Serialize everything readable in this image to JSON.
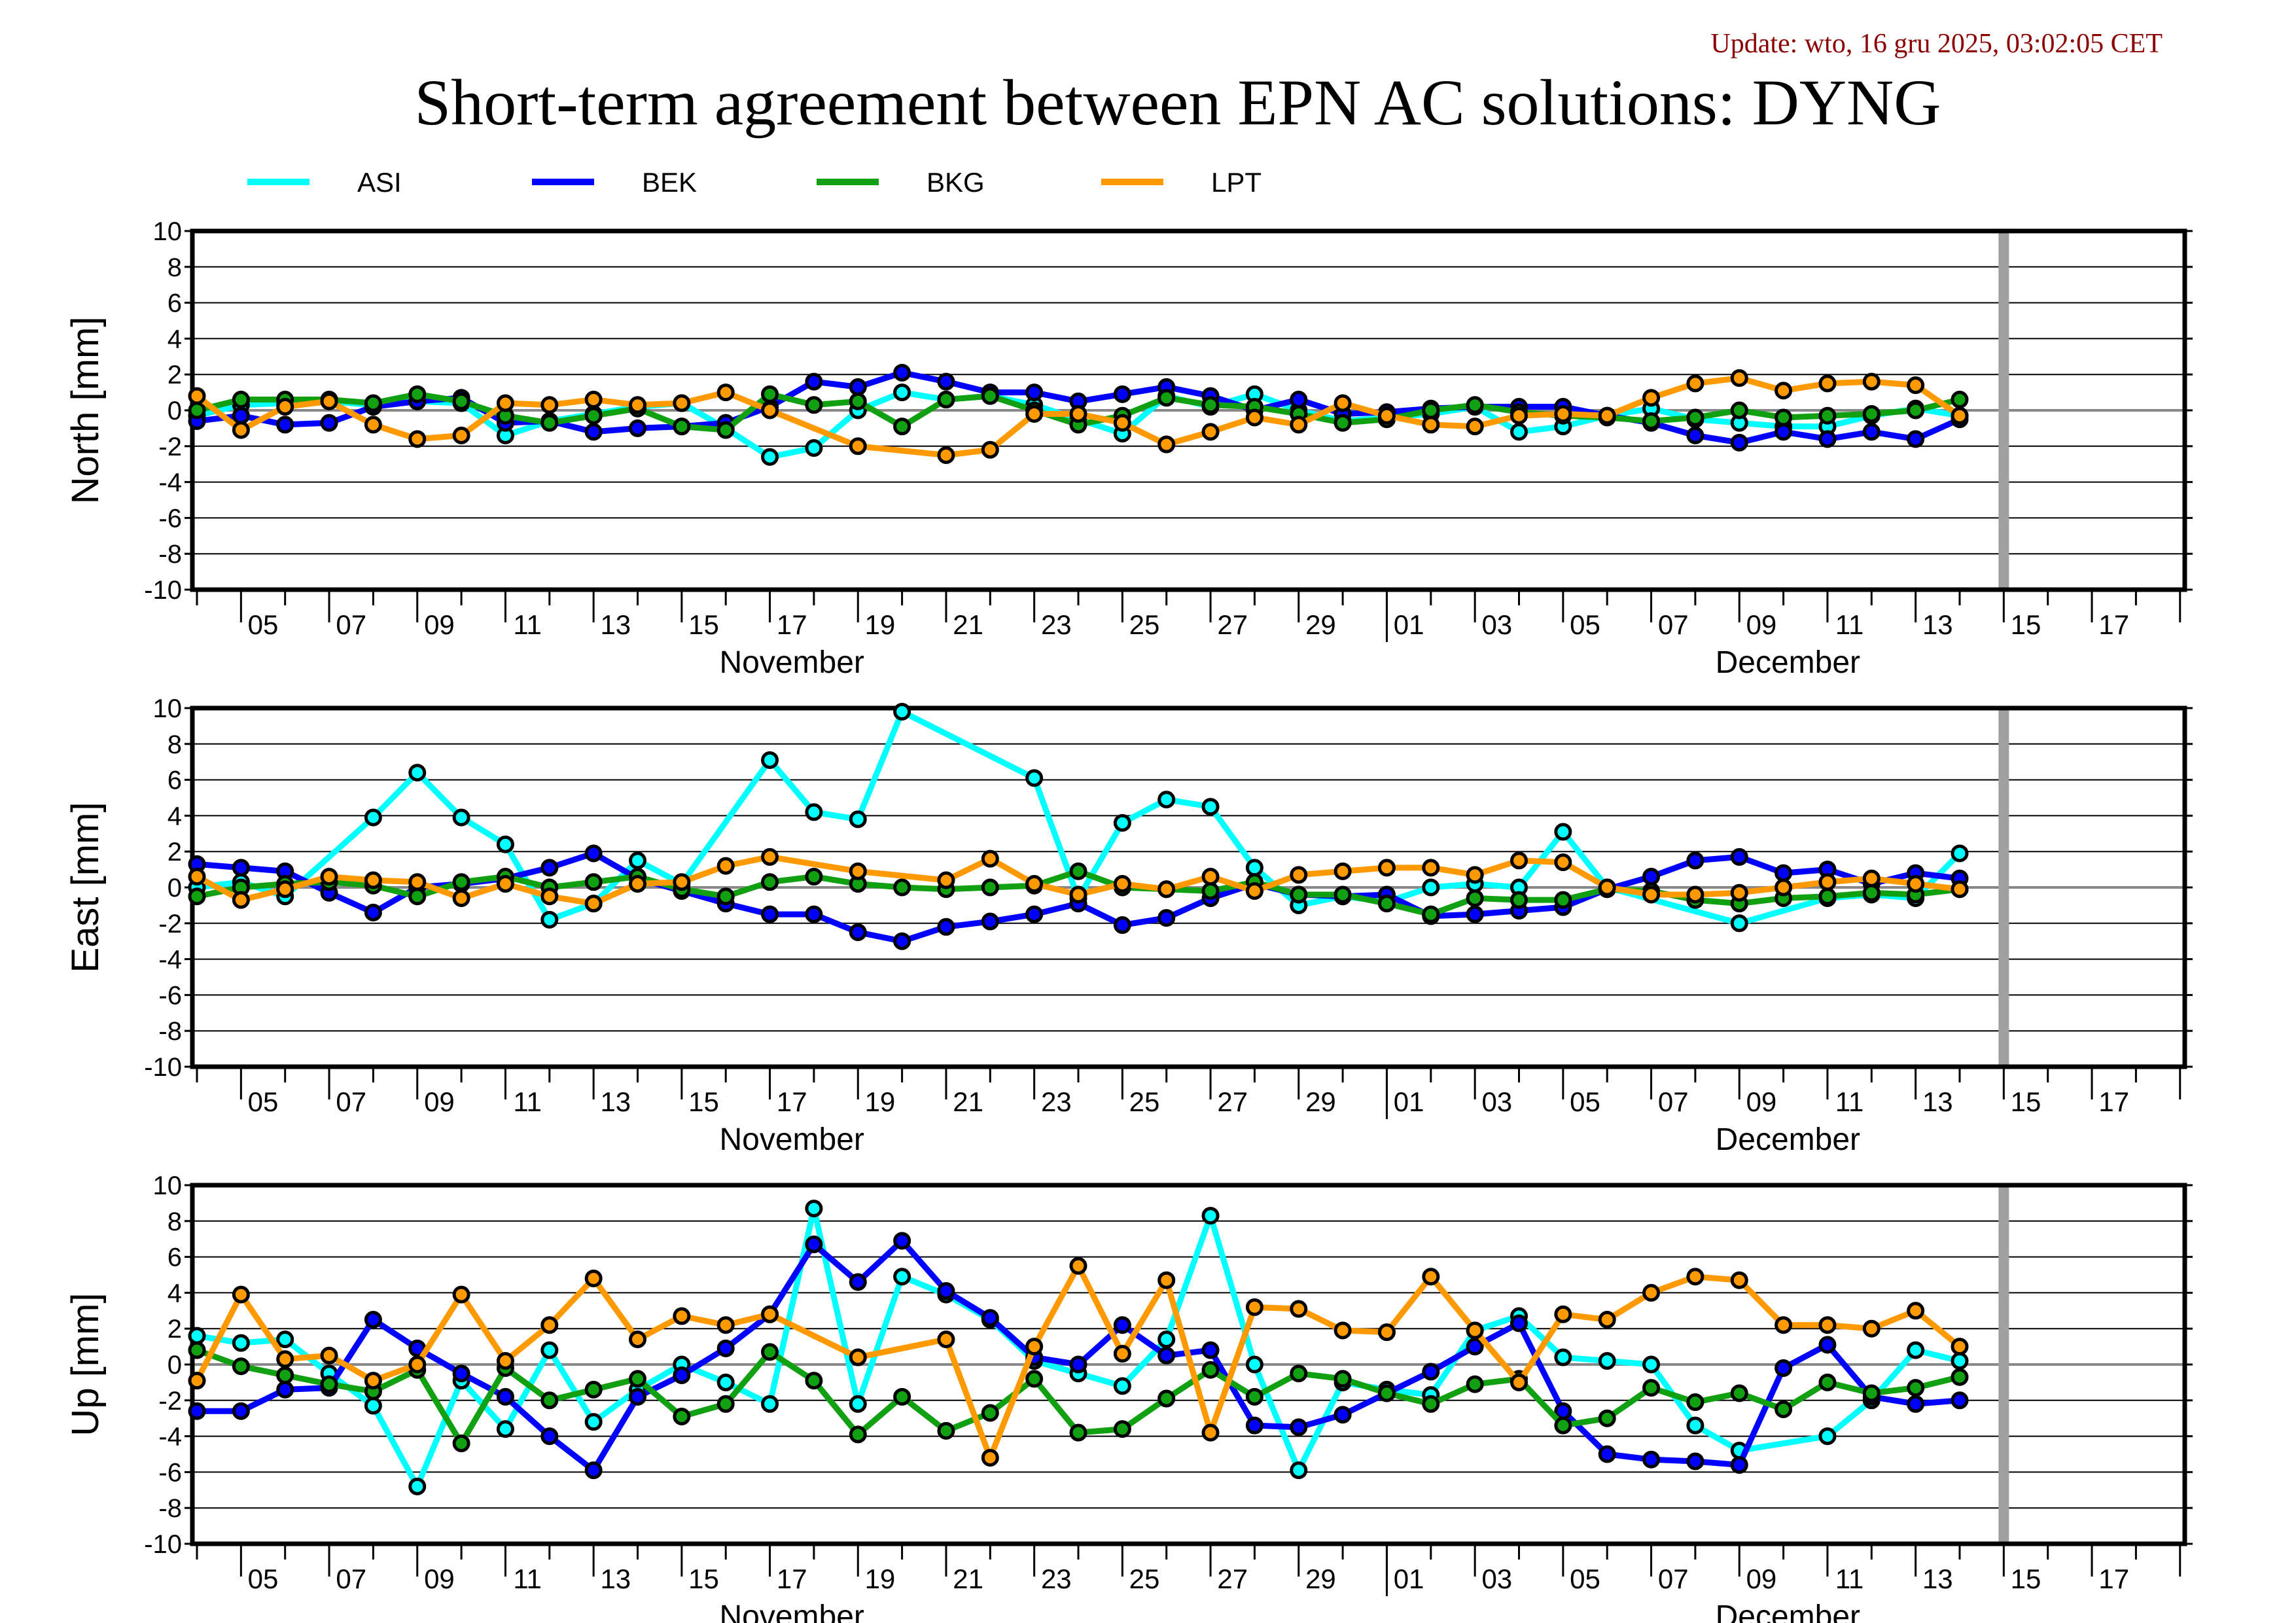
{
  "update_text": "Update: wto, 16 gru 2025, 03:02:05 CET",
  "title": "Short-term agreement between EPN AC solutions: DYNG",
  "colors": {
    "ASI": "#00ffff",
    "BEK": "#0000ff",
    "BKG": "#11a011",
    "LPT": "#ff9900",
    "update": "#8b0000",
    "current_day_bar": "#a0a0a0"
  },
  "chart_data": {
    "type": "line",
    "x_start_date": "2025-11-04",
    "x_range": [
      "2025-11-04",
      "2025-12-19"
    ],
    "current_day_marker": "2025-12-15",
    "x_tick_labels": [
      "05",
      "07",
      "09",
      "11",
      "13",
      "15",
      "17",
      "19",
      "21",
      "23",
      "25",
      "27",
      "29",
      "01",
      "03",
      "05",
      "07",
      "09",
      "11",
      "13",
      "15",
      "17"
    ],
    "month_labels": [
      "November",
      "December"
    ],
    "legend": [
      "ASI",
      "BEK",
      "BKG",
      "LPT"
    ],
    "legend_placement": "top",
    "grid": true,
    "yticks": [
      -10,
      -8,
      -6,
      -4,
      -2,
      0,
      2,
      4,
      6,
      8,
      10
    ],
    "panels": [
      {
        "ylabel": "North [mm]",
        "ylim": [
          -10,
          10
        ],
        "series": [
          {
            "name": "ASI",
            "values": [
              -0.3,
              0.3,
              0.4,
              0.5,
              0.3,
              0.5,
              0.4,
              -1.4,
              -0.6,
              -0.2,
              0.2,
              0.4,
              -1.0,
              -2.6,
              -2.1,
              0.0,
              1.0,
              0.6,
              0.8,
              0.3,
              -0.5,
              -1.3,
              0.8,
              0.2,
              0.9,
              0.0,
              -0.6,
              -0.4,
              -0.2,
              0.2,
              -1.2,
              -0.9,
              -0.3,
              0.1,
              -0.5,
              -0.7,
              -0.9,
              -0.9,
              -0.3,
              0.1,
              -0.3
            ]
          },
          {
            "name": "BEK",
            "values": [
              -0.6,
              -0.3,
              -0.8,
              -0.7,
              0.2,
              0.5,
              0.7,
              -0.7,
              -0.6,
              -1.2,
              -1.0,
              -0.9,
              -0.7,
              0.2,
              1.6,
              1.3,
              2.1,
              1.6,
              1.0,
              1.0,
              0.5,
              0.9,
              1.3,
              0.8,
              0.0,
              0.6,
              -0.2,
              -0.1,
              0.1,
              0.2,
              0.2,
              0.2,
              -0.3,
              -0.7,
              -1.4,
              -1.8,
              -1.2,
              -1.6,
              -1.2,
              -1.6,
              -0.5
            ]
          },
          {
            "name": "BKG",
            "values": [
              0.0,
              0.6,
              0.6,
              0.6,
              0.4,
              0.9,
              0.5,
              -0.3,
              -0.7,
              -0.3,
              0.1,
              -0.9,
              -1.1,
              0.9,
              0.3,
              0.5,
              -0.9,
              0.6,
              0.8,
              0.0,
              -0.8,
              -0.3,
              0.7,
              0.3,
              0.2,
              -0.2,
              -0.7,
              -0.5,
              0.0,
              0.3,
              -0.1,
              -0.3,
              -0.4,
              -0.6,
              -0.4,
              0.0,
              -0.4,
              -0.3,
              -0.2,
              0.0,
              0.6
            ]
          },
          {
            "name": "LPT",
            "values": [
              0.8,
              -1.1,
              0.2,
              0.5,
              -0.8,
              -1.6,
              -1.4,
              0.4,
              0.3,
              0.6,
              0.3,
              0.4,
              1.0,
              0.0,
              null,
              -2.0,
              null,
              -2.5,
              -2.2,
              -0.2,
              -0.2,
              -0.7,
              -1.9,
              -1.2,
              -0.4,
              -0.8,
              0.4,
              -0.3,
              -0.8,
              -0.9,
              -0.3,
              -0.2,
              -0.3,
              0.7,
              1.5,
              1.8,
              1.1,
              1.5,
              1.6,
              1.4,
              -0.3
            ]
          }
        ]
      },
      {
        "ylabel": "East [mm]",
        "ylim": [
          -10,
          10
        ],
        "series": [
          {
            "name": "ASI",
            "values": [
              0.0,
              0.3,
              -0.5,
              null,
              3.9,
              6.4,
              3.9,
              2.4,
              -1.8,
              -0.9,
              1.5,
              0.2,
              null,
              7.1,
              4.2,
              3.8,
              9.8,
              null,
              null,
              6.1,
              -0.6,
              3.6,
              4.9,
              4.5,
              1.1,
              -1.0,
              -0.5,
              -0.8,
              0.0,
              0.2,
              0.0,
              3.1,
              0.0,
              null,
              null,
              -2.0,
              null,
              -0.6,
              -0.4,
              -0.6,
              1.9
            ]
          },
          {
            "name": "BEK",
            "values": [
              1.3,
              1.1,
              0.9,
              -0.3,
              -1.4,
              0.0,
              0.2,
              0.5,
              1.1,
              1.9,
              0.5,
              -0.2,
              -0.9,
              -1.5,
              -1.5,
              -2.5,
              -3.0,
              -2.2,
              -1.9,
              -1.5,
              -0.9,
              -2.1,
              -1.7,
              -0.6,
              0.2,
              -0.4,
              -0.5,
              -0.4,
              -1.6,
              -1.5,
              -1.3,
              -1.1,
              -0.1,
              0.6,
              1.5,
              1.7,
              0.8,
              1.0,
              0.2,
              0.8,
              0.5
            ]
          },
          {
            "name": "BKG",
            "values": [
              -0.5,
              0.0,
              0.2,
              0.3,
              0.1,
              -0.5,
              0.3,
              0.6,
              0.0,
              0.3,
              0.6,
              -0.1,
              -0.5,
              0.3,
              0.6,
              0.2,
              0.0,
              -0.1,
              0.0,
              0.1,
              0.9,
              0.0,
              -0.1,
              -0.2,
              0.3,
              -0.4,
              -0.4,
              -0.9,
              -1.5,
              -0.6,
              -0.7,
              -0.7,
              -0.1,
              -0.2,
              -0.7,
              -0.9,
              -0.6,
              -0.5,
              -0.3,
              -0.4,
              -0.1
            ]
          },
          {
            "name": "LPT",
            "values": [
              0.6,
              -0.7,
              -0.1,
              0.6,
              0.4,
              0.3,
              -0.6,
              0.2,
              -0.5,
              -0.9,
              0.2,
              0.3,
              1.2,
              1.7,
              null,
              0.9,
              null,
              0.4,
              1.6,
              0.2,
              -0.4,
              0.2,
              -0.1,
              0.6,
              -0.2,
              0.7,
              0.9,
              1.1,
              1.1,
              0.7,
              1.5,
              1.4,
              0.0,
              -0.4,
              -0.4,
              -0.3,
              0.0,
              0.3,
              0.5,
              0.2,
              -0.1
            ]
          }
        ]
      },
      {
        "ylabel": "Up [mm]",
        "ylim": [
          -10,
          10
        ],
        "series": [
          {
            "name": "ASI",
            "values": [
              1.6,
              1.2,
              1.4,
              -0.5,
              -2.3,
              -6.8,
              -0.9,
              -3.6,
              0.8,
              -3.2,
              -1.4,
              0.0,
              -1.0,
              -2.2,
              8.7,
              -2.2,
              4.9,
              3.9,
              2.5,
              0.2,
              -0.5,
              -1.2,
              1.4,
              8.3,
              0.0,
              -5.9,
              -1.0,
              -1.4,
              -1.7,
              1.9,
              2.7,
              0.4,
              0.2,
              0.0,
              -3.4,
              -4.8,
              null,
              -4.0,
              -2.0,
              0.8,
              0.2
            ]
          },
          {
            "name": "BEK",
            "values": [
              -2.6,
              -2.6,
              -1.4,
              -1.3,
              2.5,
              0.9,
              -0.5,
              -1.8,
              -4.0,
              -5.9,
              -1.8,
              -0.6,
              0.9,
              2.8,
              6.7,
              4.6,
              6.9,
              4.1,
              2.6,
              0.4,
              0.0,
              2.2,
              0.5,
              0.8,
              -3.4,
              -3.5,
              -2.8,
              -1.6,
              -0.4,
              1.0,
              2.3,
              -2.6,
              -5.0,
              -5.3,
              -5.4,
              -5.6,
              -0.2,
              1.1,
              -1.8,
              -2.2,
              -2.0
            ]
          },
          {
            "name": "BKG",
            "values": [
              0.8,
              -0.1,
              -0.6,
              -1.1,
              -1.5,
              -0.3,
              -4.4,
              -0.2,
              -2.0,
              -1.4,
              -0.8,
              -2.9,
              -2.2,
              0.7,
              -0.9,
              -3.9,
              -1.8,
              -3.7,
              -2.7,
              -0.8,
              -3.8,
              -3.6,
              -1.9,
              -0.3,
              -1.8,
              -0.5,
              -0.8,
              -1.6,
              -2.2,
              -1.1,
              -0.8,
              -3.4,
              -3.0,
              -1.3,
              -2.1,
              -1.6,
              -2.5,
              -1.0,
              -1.6,
              -1.3,
              -0.7
            ]
          },
          {
            "name": "LPT",
            "values": [
              -0.9,
              3.9,
              0.3,
              0.5,
              -0.9,
              0.0,
              3.9,
              0.2,
              2.2,
              4.8,
              1.4,
              2.7,
              2.2,
              2.8,
              null,
              0.4,
              null,
              1.4,
              -5.2,
              1.0,
              5.5,
              0.6,
              4.7,
              -3.8,
              3.2,
              3.1,
              1.9,
              1.8,
              4.9,
              1.9,
              -1.0,
              2.8,
              2.5,
              4.0,
              4.9,
              4.7,
              2.2,
              2.2,
              2.0,
              3.0,
              1.0
            ]
          }
        ]
      }
    ]
  }
}
